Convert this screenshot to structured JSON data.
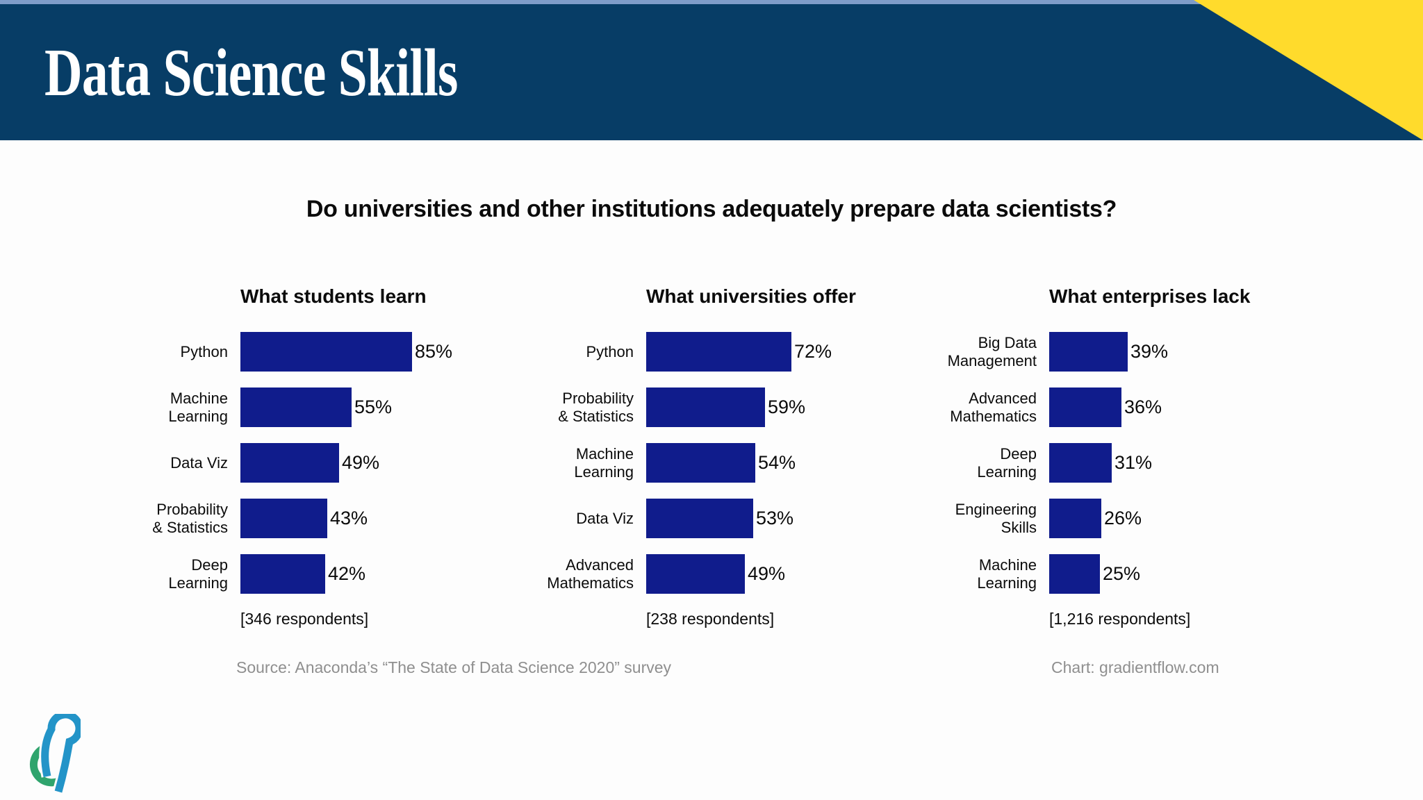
{
  "header": {
    "title": "Data Science Skills"
  },
  "question": "Do universities and other institutions adequately prepare data scientists?",
  "theme": {
    "band_color": "#073D66",
    "corner_color": "#FFDB2C",
    "strip_color": "#7F9DC9",
    "bar_color": "#101C8C",
    "muted_text_color": "#8F8F8F",
    "logo_blue": "#2394C8",
    "logo_green": "#2FA46D"
  },
  "chart_data": {
    "type": "bar",
    "orientation": "horizontal",
    "unit": "%",
    "xlim": [
      0,
      100
    ],
    "grid": false,
    "legend": "none",
    "bar_color": "#101C8C",
    "charts": [
      {
        "title": "What students learn",
        "categories": [
          "Python",
          "Machine\nLearning",
          "Data Viz",
          "Probability\n& Statistics",
          "Deep\nLearning"
        ],
        "values": [
          85,
          55,
          49,
          43,
          42
        ],
        "respondents": "[346 respondents]"
      },
      {
        "title": "What universities offer",
        "categories": [
          "Python",
          "Probability\n& Statistics",
          "Machine\nLearning",
          "Data Viz",
          "Advanced\nMathematics"
        ],
        "values": [
          72,
          59,
          54,
          53,
          49
        ],
        "respondents": "[238 respondents]"
      },
      {
        "title": "What enterprises lack",
        "categories": [
          "Big Data\nManagement",
          "Advanced\nMathematics",
          "Deep\nLearning",
          "Engineering\nSkills",
          "Machine\nLearning"
        ],
        "values": [
          39,
          36,
          31,
          26,
          25
        ],
        "respondents": "[1,216 respondents]"
      }
    ]
  },
  "footer": {
    "source": "Source: Anaconda’s “The State of Data Science 2020” survey",
    "credit": "Chart: gradientflow.com",
    "logo": "gradientflow-logo"
  }
}
